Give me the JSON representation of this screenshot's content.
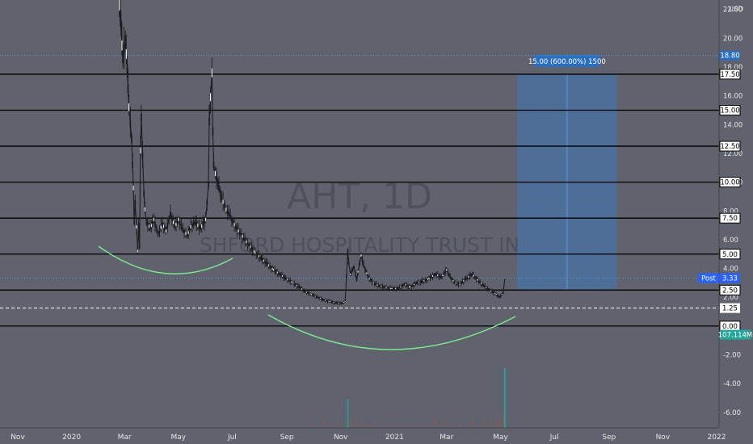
{
  "chart_data": {
    "type": "candlestick",
    "symbol": "AHT",
    "interval": "1D",
    "watermark_title": "AHT, 1D",
    "watermark_subtitle": "SHFORD HOSPITALITY TRUST IN",
    "currency": "USD",
    "x_ticks": [
      "Nov",
      "2020",
      "Mar",
      "May",
      "Jul",
      "Sep",
      "Nov",
      "2021",
      "Mar",
      "May",
      "Jul",
      "Sep",
      "Nov",
      "2022"
    ],
    "y_ticks": [
      "22.00",
      "20.00",
      "18.00",
      "16.00",
      "14.00",
      "12.00",
      "10.00",
      "8.00",
      "6.00",
      "4.00",
      "2.00",
      "0.00",
      "-2.00",
      "-4.00",
      "-6.00"
    ],
    "ylim": [
      -6.4,
      22.6
    ],
    "horizontal_levels": [
      17.5,
      15.0,
      12.5,
      10.0,
      7.5,
      5.0,
      2.5,
      0.0
    ],
    "level_labels": [
      "17.50",
      "15.00",
      "12.50",
      "10.00",
      "7.50",
      "5.00",
      "2.50",
      "0.00"
    ],
    "dashed_level": {
      "value": 1.25,
      "label": "1.25"
    },
    "dotted_level": {
      "value": 18.8,
      "label": "18.80"
    },
    "last_price": {
      "label": "Post",
      "value": "3.33"
    },
    "volume_label": "107.114M",
    "projection": {
      "label": "15.00 (600.00%) 1500",
      "from": 2.5,
      "to": 17.5,
      "start": "2021-05-20",
      "end": "2021-09-10"
    },
    "price_path": [
      [
        "2020-02-24",
        22.3
      ],
      [
        "2020-02-25",
        21.6
      ],
      [
        "2020-02-26",
        20.9
      ],
      [
        "2020-02-27",
        19.5
      ],
      [
        "2020-02-28",
        18.6
      ],
      [
        "2020-03-02",
        19.8
      ],
      [
        "2020-03-03",
        18.9
      ],
      [
        "2020-03-04",
        17.9
      ],
      [
        "2020-03-05",
        16.5
      ],
      [
        "2020-03-06",
        15.2
      ],
      [
        "2020-03-09",
        13.0
      ],
      [
        "2020-03-10",
        11.2
      ],
      [
        "2020-03-11",
        9.6
      ],
      [
        "2020-03-12",
        7.2
      ],
      [
        "2020-03-13",
        8.6
      ],
      [
        "2020-03-16",
        5.2
      ],
      [
        "2020-03-17",
        7.0
      ],
      [
        "2020-03-18",
        5.5
      ],
      [
        "2020-03-19",
        12.2
      ],
      [
        "2020-03-20",
        14.5
      ],
      [
        "2020-03-23",
        9.2
      ],
      [
        "2020-03-24",
        8.1
      ],
      [
        "2020-03-26",
        7.2
      ],
      [
        "2020-03-30",
        6.8
      ],
      [
        "2020-04-03",
        7.4
      ],
      [
        "2020-04-08",
        6.4
      ],
      [
        "2020-04-13",
        7.1
      ],
      [
        "2020-04-17",
        6.6
      ],
      [
        "2020-04-22",
        7.8
      ],
      [
        "2020-04-27",
        6.9
      ],
      [
        "2020-05-01",
        7.4
      ],
      [
        "2020-05-06",
        6.7
      ],
      [
        "2020-05-11",
        6.3
      ],
      [
        "2020-05-15",
        6.9
      ],
      [
        "2020-05-20",
        7.2
      ],
      [
        "2020-05-26",
        6.8
      ],
      [
        "2020-06-01",
        7.4
      ],
      [
        "2020-06-04",
        9.8
      ],
      [
        "2020-06-05",
        14.2
      ],
      [
        "2020-06-08",
        17.6
      ],
      [
        "2020-06-09",
        13.5
      ],
      [
        "2020-06-10",
        11.2
      ],
      [
        "2020-06-12",
        10.6
      ],
      [
        "2020-06-16",
        9.6
      ],
      [
        "2020-06-19",
        8.9
      ],
      [
        "2020-06-24",
        8.1
      ],
      [
        "2020-06-29",
        7.6
      ],
      [
        "2020-07-02",
        7.2
      ],
      [
        "2020-07-08",
        6.6
      ],
      [
        "2020-07-14",
        6.1
      ],
      [
        "2020-07-20",
        5.6
      ],
      [
        "2020-07-27",
        5.1
      ],
      [
        "2020-08-03",
        4.7
      ],
      [
        "2020-08-10",
        4.3
      ],
      [
        "2020-08-17",
        3.9
      ],
      [
        "2020-08-24",
        3.6
      ],
      [
        "2020-08-31",
        3.3
      ],
      [
        "2020-09-08",
        3.0
      ],
      [
        "2020-09-15",
        2.7
      ],
      [
        "2020-09-22",
        2.4
      ],
      [
        "2020-09-29",
        2.2
      ],
      [
        "2020-10-06",
        2.0
      ],
      [
        "2020-10-13",
        1.8
      ],
      [
        "2020-10-20",
        1.7
      ],
      [
        "2020-10-27",
        1.6
      ],
      [
        "2020-11-03",
        1.6
      ],
      [
        "2020-11-06",
        1.7
      ],
      [
        "2020-11-09",
        5.2
      ],
      [
        "2020-11-10",
        4.4
      ],
      [
        "2020-11-12",
        3.6
      ],
      [
        "2020-11-16",
        4.1
      ],
      [
        "2020-11-19",
        3.2
      ],
      [
        "2020-11-24",
        4.9
      ],
      [
        "2020-11-27",
        4.2
      ],
      [
        "2020-12-02",
        3.4
      ],
      [
        "2020-12-08",
        3.0
      ],
      [
        "2020-12-14",
        2.8
      ],
      [
        "2020-12-21",
        2.7
      ],
      [
        "2020-12-29",
        2.6
      ],
      [
        "2021-01-05",
        2.6
      ],
      [
        "2021-01-12",
        2.9
      ],
      [
        "2021-01-19",
        2.7
      ],
      [
        "2021-01-26",
        3.0
      ],
      [
        "2021-02-02",
        3.1
      ],
      [
        "2021-02-09",
        3.3
      ],
      [
        "2021-02-16",
        3.6
      ],
      [
        "2021-02-23",
        3.4
      ],
      [
        "2021-03-01",
        3.9
      ],
      [
        "2021-03-05",
        3.4
      ],
      [
        "2021-03-10",
        3.0
      ],
      [
        "2021-03-16",
        2.9
      ],
      [
        "2021-03-23",
        3.3
      ],
      [
        "2021-03-30",
        3.6
      ],
      [
        "2021-04-05",
        3.2
      ],
      [
        "2021-04-12",
        2.8
      ],
      [
        "2021-04-19",
        2.5
      ],
      [
        "2021-04-26",
        2.2
      ],
      [
        "2021-04-30",
        2.0
      ],
      [
        "2021-05-04",
        2.3
      ],
      [
        "2021-05-06",
        3.3
      ]
    ],
    "volume_path": [
      [
        "2020-09-15",
        0.4
      ],
      [
        "2020-09-29",
        0.6
      ],
      [
        "2020-10-13",
        0.8
      ],
      [
        "2020-10-27",
        0.6
      ],
      [
        "2020-11-09",
        3.5
      ],
      [
        "2020-11-12",
        0.9
      ],
      [
        "2020-11-19",
        1.1
      ],
      [
        "2020-11-27",
        0.6
      ],
      [
        "2020-12-08",
        0.8
      ],
      [
        "2020-12-21",
        0.5
      ],
      [
        "2021-01-05",
        0.5
      ],
      [
        "2021-01-19",
        0.7
      ],
      [
        "2021-02-02",
        0.6
      ],
      [
        "2021-02-16",
        0.9
      ],
      [
        "2021-03-01",
        0.8
      ],
      [
        "2021-03-16",
        0.6
      ],
      [
        "2021-03-30",
        0.7
      ],
      [
        "2021-04-12",
        0.8
      ],
      [
        "2021-04-26",
        0.9
      ],
      [
        "2021-04-30",
        1.3
      ],
      [
        "2021-05-04",
        2.1
      ],
      [
        "2021-05-06",
        7.4
      ]
    ],
    "colors": {
      "background": "#60636d",
      "level_line": "#000000",
      "projection_fill": "#3d78b9",
      "projection_label": "#2a6fc0",
      "arc": "#7ee58f",
      "volume_up": "#8a5a5a",
      "volume_highlight": "#26a69a",
      "price_label": "#2962ff",
      "volume_label": "#26a69a"
    }
  }
}
